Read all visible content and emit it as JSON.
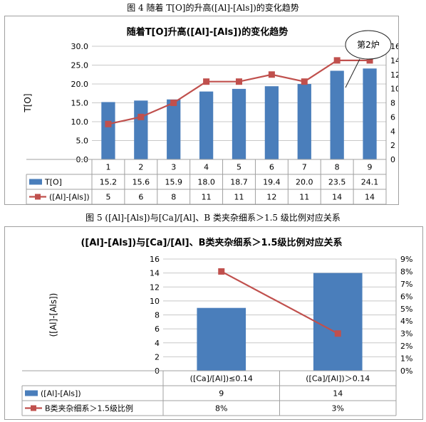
{
  "figures": {
    "fig4_caption": "图 4 随着 T[O]的升高([Al]-[Als])的变化趋势",
    "fig5_caption": "图 5 ([Al]-[Als])与[Ca]/[Al]、B 类夹杂细系＞1.5 级比例对应关系"
  },
  "chart_data": [
    {
      "type": "bar",
      "title": "随着T[O]升高([Al]-[Als])的变化趋势",
      "ylabel": "T[O]",
      "categories": [
        "1",
        "2",
        "3",
        "4",
        "5",
        "6",
        "7",
        "8",
        "9"
      ],
      "ylim": [
        0,
        30
      ],
      "y_ticks": [
        "30.0",
        "25.0",
        "20.0",
        "15.0",
        "10.0",
        "5.0",
        "0.0"
      ],
      "y2lim": [
        0,
        16
      ],
      "y2_ticks": [
        "16",
        "14",
        "12",
        "10",
        "8",
        "6",
        "4",
        "2",
        "0"
      ],
      "series": [
        {
          "name": "T[O]",
          "type": "bar",
          "color": "#4a7ebb",
          "values": [
            15.2,
            15.6,
            15.9,
            18.0,
            18.7,
            19.4,
            20.0,
            23.5,
            24.1
          ],
          "labels": [
            "15.2",
            "15.6",
            "15.9",
            "18.0",
            "18.7",
            "19.4",
            "20.0",
            "23.5",
            "24.1"
          ]
        },
        {
          "name": "([Al]-[Als])",
          "type": "line",
          "axis": "secondary",
          "color": "#c0504d",
          "values": [
            5,
            6,
            8,
            11,
            11,
            12,
            11,
            14,
            14
          ],
          "labels": [
            "5",
            "6",
            "8",
            "11",
            "11",
            "12",
            "11",
            "14",
            "14"
          ]
        }
      ],
      "annotation": "第2炉",
      "grid": true,
      "data_table": true
    },
    {
      "type": "bar",
      "title": "([Al]-[Als])与[Ca]/[Al]、B类夹杂细系＞1.5级比例对应关系",
      "ylabel": "([Al]-[Als])",
      "categories": [
        "([Ca]/[Al])≤0.14",
        "([Ca]/[Al])＞0.14"
      ],
      "ylim": [
        0,
        16
      ],
      "y_ticks": [
        "16",
        "14",
        "12",
        "10",
        "8",
        "6",
        "4",
        "2",
        "0"
      ],
      "y2lim": [
        0,
        9
      ],
      "y2_ticks": [
        "9%",
        "8%",
        "7%",
        "6%",
        "5%",
        "4%",
        "3%",
        "2%",
        "1%",
        "0%"
      ],
      "series": [
        {
          "name": "([Al]-[Als])",
          "type": "bar",
          "color": "#4a7ebb",
          "values": [
            9,
            14
          ],
          "labels": [
            "9",
            "14"
          ]
        },
        {
          "name": "B类夹杂细系＞1.5级比例",
          "type": "line",
          "axis": "secondary",
          "color": "#c0504d",
          "values": [
            8,
            3
          ],
          "labels": [
            "8%",
            "3%"
          ]
        }
      ],
      "grid": true,
      "data_table": true
    }
  ]
}
